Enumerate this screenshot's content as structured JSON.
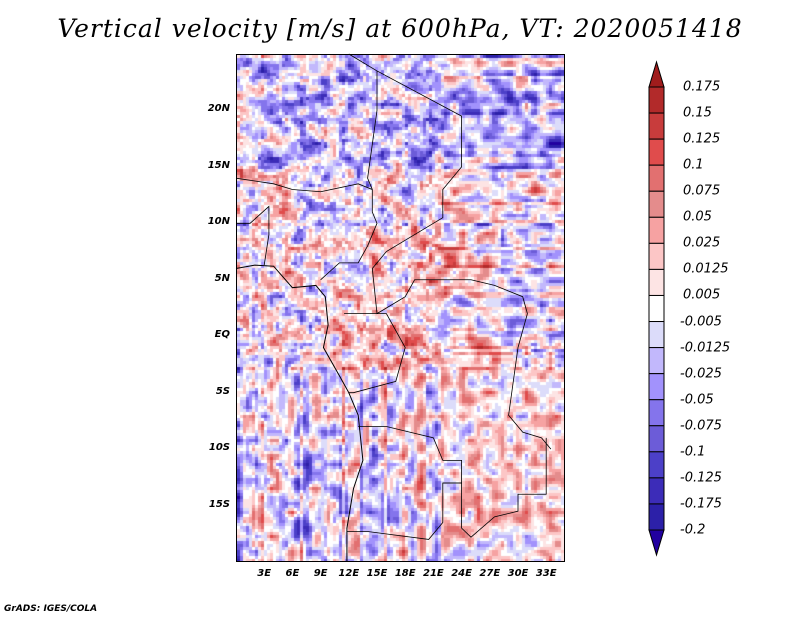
{
  "chart_data": {
    "type": "heatmap",
    "title": "Vertical velocity [m/s] at 600hPa, VT: 2020051418",
    "xlabel": "",
    "ylabel": "",
    "xlim": [
      0,
      35
    ],
    "ylim": [
      -20,
      25
    ],
    "x_ticks": [
      {
        "v": 3,
        "label": "3E"
      },
      {
        "v": 6,
        "label": "6E"
      },
      {
        "v": 9,
        "label": "9E"
      },
      {
        "v": 12,
        "label": "12E"
      },
      {
        "v": 15,
        "label": "15E"
      },
      {
        "v": 18,
        "label": "18E"
      },
      {
        "v": 21,
        "label": "21E"
      },
      {
        "v": 24,
        "label": "24E"
      },
      {
        "v": 27,
        "label": "27E"
      },
      {
        "v": 30,
        "label": "30E"
      },
      {
        "v": 33,
        "label": "33E"
      }
    ],
    "y_ticks": [
      {
        "v": 20,
        "label": "20N"
      },
      {
        "v": 15,
        "label": "15N"
      },
      {
        "v": 10,
        "label": "10N"
      },
      {
        "v": 5,
        "label": "5N"
      },
      {
        "v": 0,
        "label": "EQ"
      },
      {
        "v": -5,
        "label": "5S"
      },
      {
        "v": -10,
        "label": "10S"
      },
      {
        "v": -15,
        "label": "15S"
      }
    ],
    "colorbar": {
      "levels": [
        "0.175",
        "0.15",
        "0.125",
        "0.1",
        "0.075",
        "0.05",
        "0.025",
        "0.0125",
        "0.005",
        "-0.005",
        "-0.0125",
        "-0.025",
        "-0.05",
        "-0.075",
        "-0.1",
        "-0.125",
        "-0.175",
        "-0.2"
      ],
      "colors": [
        "#a01c1c",
        "#b22a2a",
        "#c83c3c",
        "#e04c4c",
        "#e27070",
        "#e48c8c",
        "#f6a2a2",
        "#fcc6c6",
        "#fde4e4",
        "#ffffff",
        "#dcdcfa",
        "#c2b8fc",
        "#a292fc",
        "#8474ec",
        "#6c5cd8",
        "#4c40c8",
        "#3c2cb8",
        "#2c20a8",
        "#2200a0"
      ]
    }
  },
  "credit": "GrADS: IGES/COLA"
}
